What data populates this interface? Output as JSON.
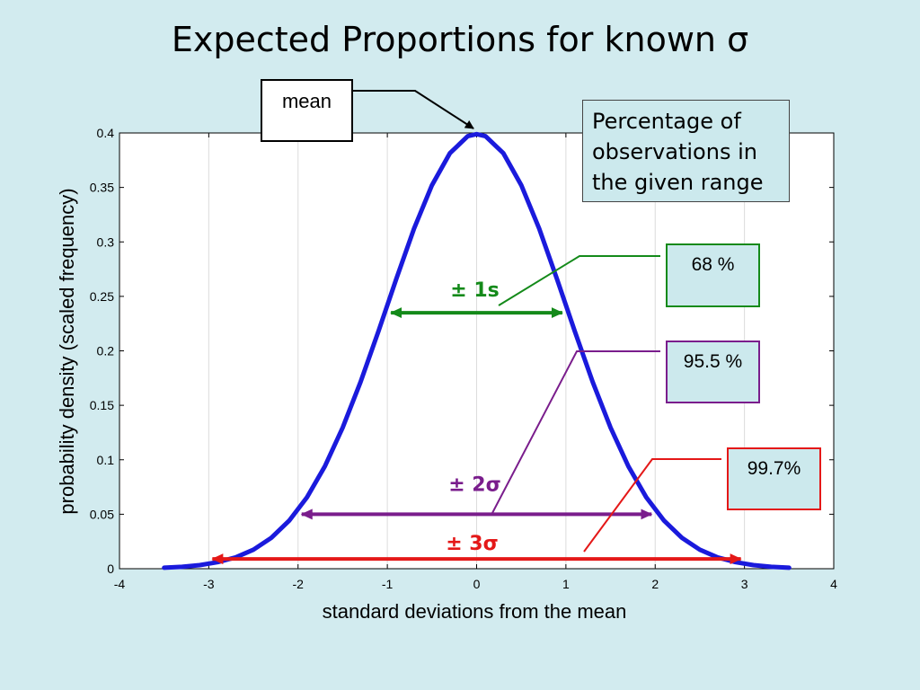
{
  "slide": {
    "title": "Expected Proportions for known σ"
  },
  "chart_data": {
    "type": "line",
    "title": "Expected Proportions for known σ",
    "xlabel": "standard deviations from the mean",
    "ylabel": "probability density (scaled frequency)",
    "xlim": [
      -4,
      4
    ],
    "ylim": [
      0,
      0.4
    ],
    "xticks": [
      "-4",
      "-3",
      "-2",
      "-1",
      "0",
      "1",
      "2",
      "3",
      "4"
    ],
    "yticks": [
      "0",
      "0.05",
      "0.1",
      "0.15",
      "0.2",
      "0.25",
      "0.3",
      "0.35",
      "0.4"
    ],
    "grid": "vertical",
    "series": [
      {
        "x": [
          -3.5,
          -3.3,
          -3.1,
          -2.9,
          -2.7,
          -2.5,
          -2.3,
          -2.1,
          -1.9,
          -1.7,
          -1.5,
          -1.3,
          -1.1,
          -0.9,
          -0.7,
          -0.5,
          -0.3,
          -0.1,
          0.0,
          0.1,
          0.3,
          0.5,
          0.7,
          0.9,
          1.1,
          1.3,
          1.5,
          1.7,
          1.9,
          2.1,
          2.3,
          2.5,
          2.7,
          2.9,
          3.1,
          3.3,
          3.5
        ],
        "values": [
          0.0009,
          0.0017,
          0.0033,
          0.006,
          0.0104,
          0.0175,
          0.0283,
          0.044,
          0.0656,
          0.094,
          0.1295,
          0.1714,
          0.2179,
          0.2661,
          0.3123,
          0.3521,
          0.3814,
          0.397,
          0.3989,
          0.397,
          0.3814,
          0.3521,
          0.3123,
          0.2661,
          0.2179,
          0.1714,
          0.1295,
          0.094,
          0.0656,
          0.044,
          0.0283,
          0.0175,
          0.0104,
          0.006,
          0.0033,
          0.0017,
          0.0009
        ],
        "color": "#1a1adc"
      }
    ],
    "ranges": [
      {
        "label": "± 1s",
        "from": -1,
        "to": 1,
        "y": 0.235,
        "color": "#148a1a",
        "percent": "68 %"
      },
      {
        "label": "± 2σ",
        "from": -2,
        "to": 2,
        "y": 0.05,
        "color": "#7a1d8c",
        "percent": "95.5 %"
      },
      {
        "label": "± 3σ",
        "from": -3,
        "to": 3,
        "y": 0.009,
        "color": "#e41818",
        "percent": "99.7%"
      }
    ]
  },
  "annotations": {
    "mean_label": "mean",
    "percent_box": "Percentage of observations in the given range"
  }
}
